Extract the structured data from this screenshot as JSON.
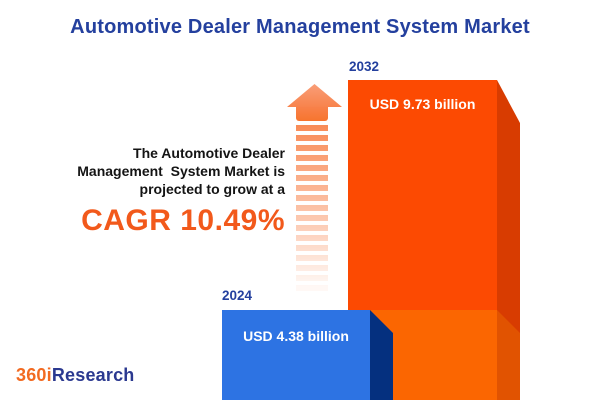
{
  "title": "Automotive Dealer Management System Market",
  "description": {
    "line1": "The Automotive Dealer",
    "line2": "Management  System Market is",
    "line3": "projected to grow at a",
    "cagr": "CAGR 10.49%"
  },
  "bars": {
    "y2032": {
      "year": "2032",
      "value_label": "USD 9.73 billion"
    },
    "y2024": {
      "year": "2024",
      "value_label": "USD 4.38 billion"
    }
  },
  "logo": {
    "part1": "360i",
    "part2": "Research"
  },
  "colors": {
    "title_blue": "#24409E",
    "cagr_orange": "#F2591B",
    "bar_2024_front": "#2D73E3",
    "bar_2024_side": "#05307F",
    "bar_2032_front": "#FC4A02",
    "bar_2032_side": "#D83C01",
    "bar_2032_front_lower": "#FB6601",
    "bar_2032_side_lower": "#E15301",
    "arrow_orange": "#F7752E",
    "logo_orange": "#F26A21",
    "logo_blue": "#2B3990"
  },
  "chart_data": {
    "type": "bar",
    "title": "Automotive Dealer Management System Market",
    "categories": [
      "2024",
      "2032"
    ],
    "values": [
      4.38,
      9.73
    ],
    "unit": "USD billion",
    "value_labels": [
      "USD 4.38 billion",
      "USD 9.73 billion"
    ],
    "cagr_percent": 10.49,
    "series_colors": [
      "#2D73E3",
      "#FC4A02"
    ],
    "legend": "none",
    "grid": false,
    "annotation": "The Automotive Dealer Management System Market is projected to grow at a CAGR 10.49%"
  }
}
